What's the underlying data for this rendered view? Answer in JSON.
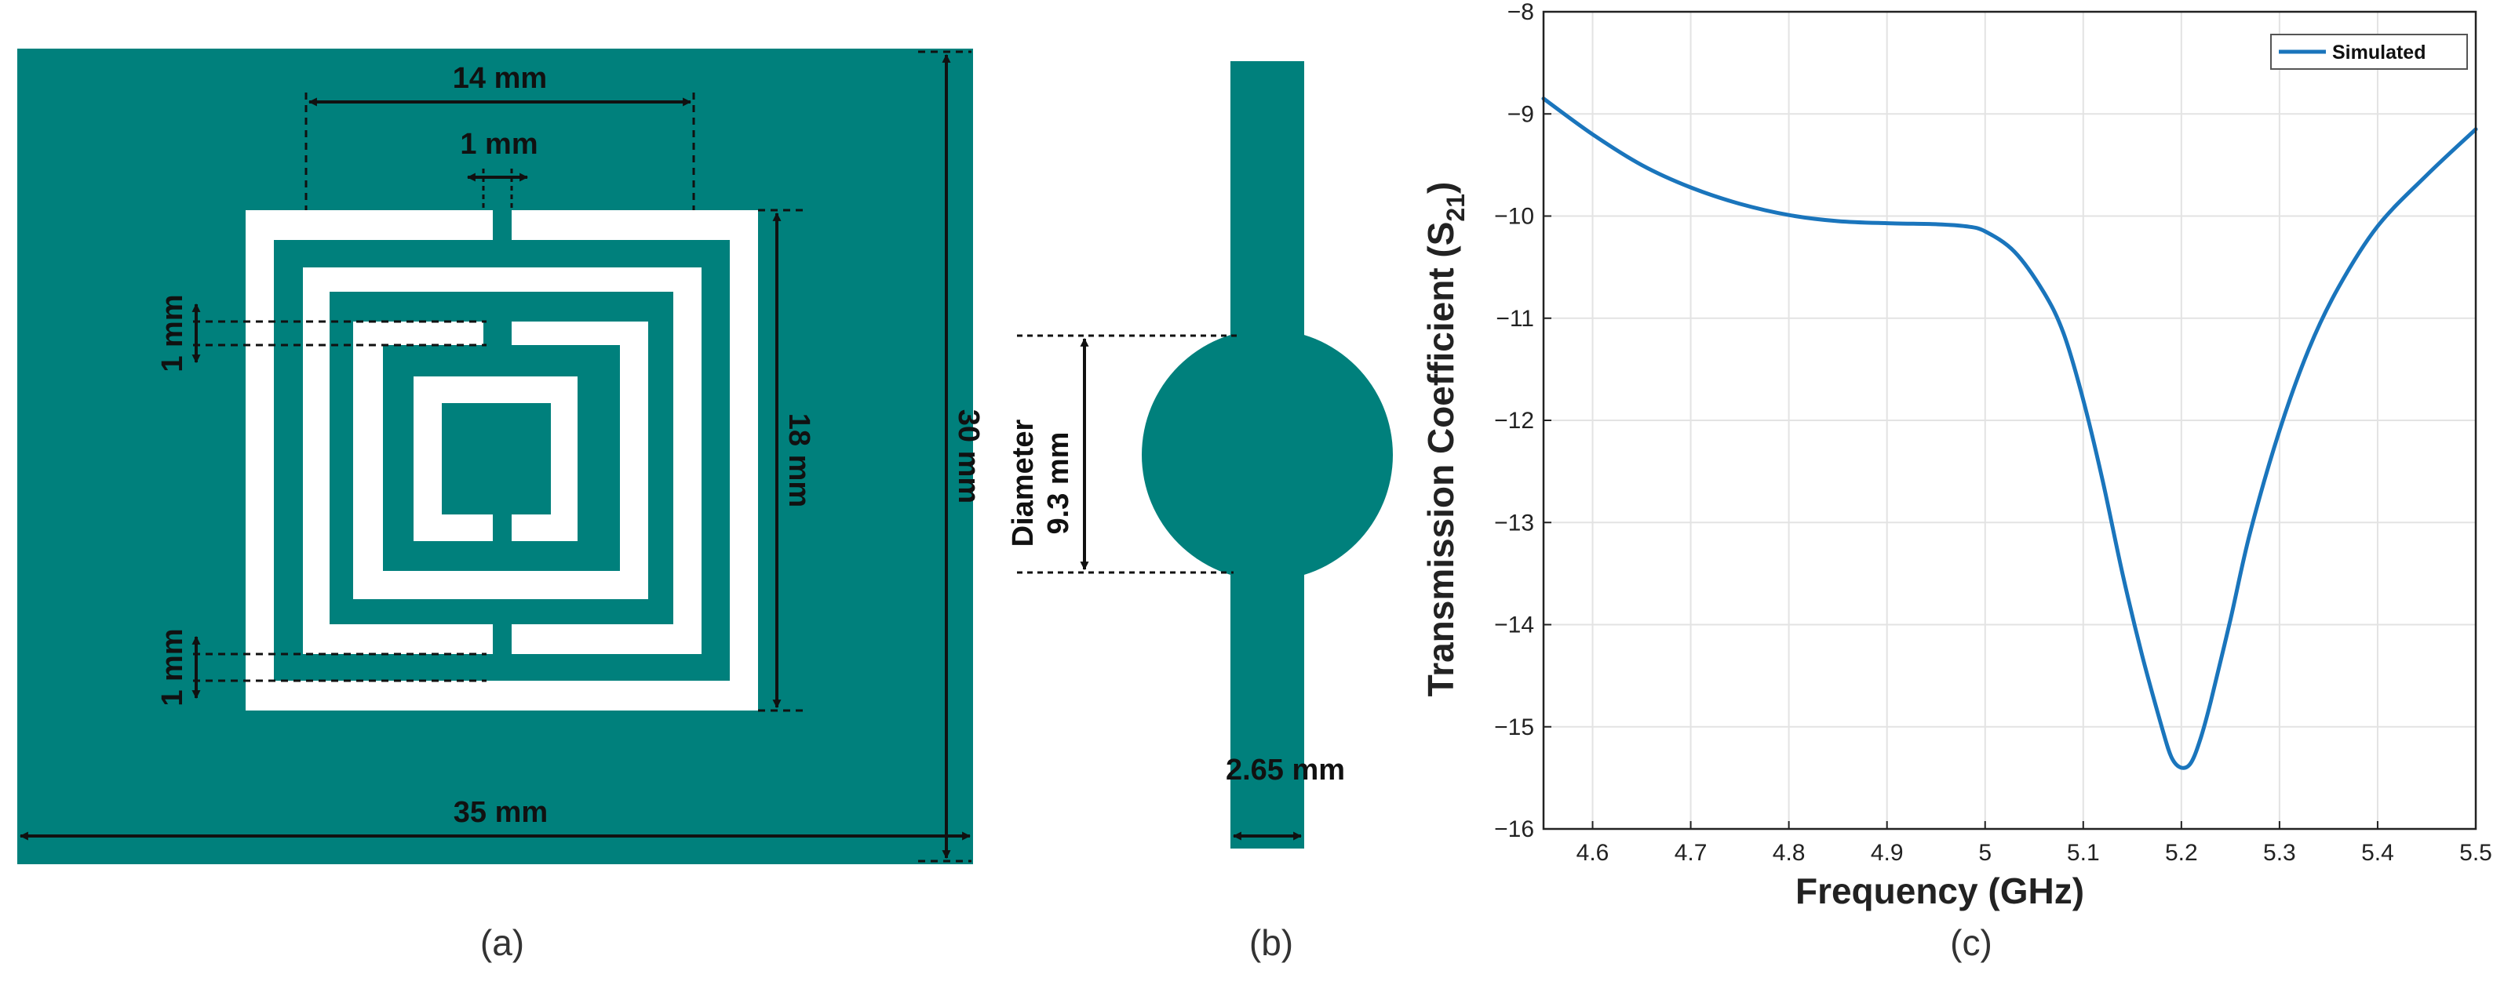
{
  "colors": {
    "substrate": "#00807c",
    "metal": "#ffffff",
    "dimension_line": "#111111",
    "curve": "#1a75bc"
  },
  "panel_a": {
    "label": "(a)",
    "dims": {
      "outer_width": "14 mm",
      "gap": "1 mm",
      "ring_spacing_top": "1 mm",
      "ring_spacing_bottom": "1 mm",
      "outer_height": "18 mm",
      "substrate_height": "30 mm",
      "substrate_width": "35 mm"
    }
  },
  "panel_b": {
    "label": "(b)",
    "dims": {
      "diameter_label": "Diameter",
      "diameter_value": "9.3 mm",
      "line_width": "2.65 mm"
    }
  },
  "panel_c": {
    "label": "(c)",
    "chart_data": {
      "type": "line",
      "xlabel": "Frequency (GHz)",
      "ylabel": "Transmission Coefficient (S21)",
      "xlim": [
        4.55,
        5.5
      ],
      "ylim": [
        -16,
        -8
      ],
      "xticks": [
        4.6,
        4.7,
        4.8,
        4.9,
        5,
        5.1,
        5.2,
        5.3,
        5.4,
        5.5
      ],
      "xtick_labels": [
        "4.6",
        "4.7",
        "4.8",
        "4.9",
        "5",
        "5.1",
        "5.2",
        "5.3",
        "5.4",
        "5.5"
      ],
      "yticks": [
        -16,
        -15,
        -14,
        -13,
        -12,
        -11,
        -10,
        -9,
        -8
      ],
      "ytick_labels": [
        "−16",
        "−15",
        "−14",
        "−13",
        "−12",
        "−11",
        "−10",
        "−9",
        "−8"
      ],
      "grid": true,
      "legend_position": "top-right",
      "series": [
        {
          "name": "Simulated",
          "x": [
            4.55,
            4.6,
            4.65,
            4.7,
            4.75,
            4.8,
            4.85,
            4.9,
            4.95,
            4.98,
            5.0,
            5.03,
            5.06,
            5.08,
            5.1,
            5.12,
            5.14,
            5.16,
            5.18,
            5.19,
            5.2,
            5.21,
            5.22,
            5.23,
            5.25,
            5.27,
            5.3,
            5.33,
            5.36,
            5.4,
            5.45,
            5.5
          ],
          "y": [
            -8.85,
            -9.2,
            -9.5,
            -9.72,
            -9.88,
            -9.99,
            -10.05,
            -10.07,
            -10.08,
            -10.1,
            -10.15,
            -10.35,
            -10.75,
            -11.15,
            -11.8,
            -12.6,
            -13.5,
            -14.3,
            -15.0,
            -15.3,
            -15.4,
            -15.35,
            -15.1,
            -14.75,
            -13.95,
            -13.1,
            -12.1,
            -11.3,
            -10.7,
            -10.1,
            -9.6,
            -9.15
          ]
        }
      ]
    }
  }
}
